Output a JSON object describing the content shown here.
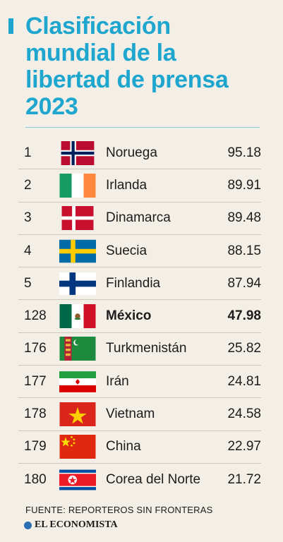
{
  "header": {
    "title_lines": [
      "Clasificación",
      "mundial de la",
      "libertad de prensa",
      "2023"
    ]
  },
  "chart_data": {
    "type": "table",
    "title": "Clasificación mundial de la libertad de prensa 2023",
    "columns": [
      "rank",
      "flag",
      "country",
      "score"
    ],
    "rows": [
      {
        "rank": "1",
        "country": "Noruega",
        "score": "95.18",
        "flag": "norway-flag-icon"
      },
      {
        "rank": "2",
        "country": "Irlanda",
        "score": "89.91",
        "flag": "ireland-flag-icon"
      },
      {
        "rank": "3",
        "country": "Dinamarca",
        "score": "89.48",
        "flag": "denmark-flag-icon"
      },
      {
        "rank": "4",
        "country": "Suecia",
        "score": "88.15",
        "flag": "sweden-flag-icon"
      },
      {
        "rank": "5",
        "country": "Finlandia",
        "score": "87.94",
        "flag": "finland-flag-icon"
      },
      {
        "rank": "128",
        "country": "México",
        "score": "47.98",
        "flag": "mexico-flag-icon",
        "highlight": true
      },
      {
        "rank": "176",
        "country": "Turkmenistán",
        "score": "25.82",
        "flag": "turkmenistan-flag-icon"
      },
      {
        "rank": "177",
        "country": "Irán",
        "score": "24.81",
        "flag": "iran-flag-icon"
      },
      {
        "rank": "178",
        "country": "Vietnam",
        "score": "24.58",
        "flag": "vietnam-flag-icon"
      },
      {
        "rank": "179",
        "country": "China",
        "score": "22.97",
        "flag": "china-flag-icon"
      },
      {
        "rank": "180",
        "country": "Corea del Norte",
        "score": "21.72",
        "flag": "north-korea-flag-icon"
      }
    ]
  },
  "footer": {
    "source": "FUENTE: REPORTEROS SIN FRONTERAS",
    "brand": "EL ECONOMISTA",
    "brand_logo": "el-economista-logo-icon"
  },
  "colors": {
    "accent": "#1fa6cf",
    "background": "#f3efe6",
    "text": "#1c1c1c"
  }
}
